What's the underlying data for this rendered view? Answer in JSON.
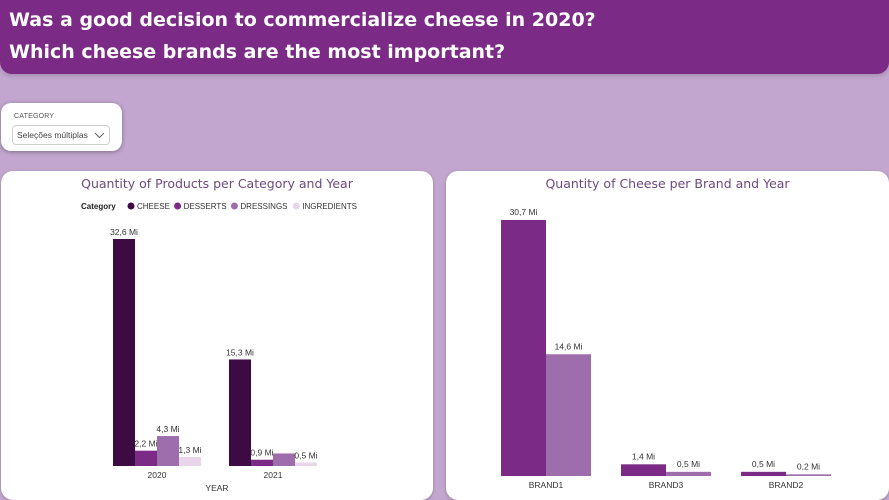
{
  "header": {
    "line1": "Was a good decision to commercialize cheese in 2020?",
    "line2": "Which cheese brands are the most important?"
  },
  "slicer": {
    "label": "CATEGORY",
    "value": "Seleções múltiplas",
    "icon": "chevron-down-icon"
  },
  "colors": {
    "header": "#7b2a85",
    "background": "#c2a6cf"
  },
  "chart1": {
    "title": "Quantity of Products per Category and Year",
    "chart_data": {
      "type": "bar",
      "title": "Quantity of Products per Category and Year",
      "xlabel": "YEAR",
      "ylabel": "",
      "legend_title": "Category",
      "legend_position": "top",
      "categories": [
        "2020",
        "2021"
      ],
      "ylim": [
        0,
        32.6
      ],
      "series": [
        {
          "name": "CHEESE",
          "color": "#3e0a44",
          "values": [
            32.6,
            15.3
          ],
          "labels": [
            "32,6 Mi",
            "15,3 Mi"
          ]
        },
        {
          "name": "DESSERTS",
          "color": "#7b2a85",
          "values": [
            2.2,
            0.9
          ],
          "labels": [
            "2,2 Mi",
            "0,9 Mi"
          ]
        },
        {
          "name": "DRESSINGS",
          "color": "#9e6dab",
          "values": [
            4.3,
            1.8
          ],
          "labels": [
            "4,3 Mi",
            ""
          ]
        },
        {
          "name": "INGREDIENTS",
          "color": "#e8d5ea",
          "values": [
            1.3,
            0.5
          ],
          "labels": [
            "1,3 Mi",
            "0,5 Mi"
          ]
        }
      ]
    }
  },
  "chart2": {
    "title": "Quantity of Cheese per Brand and Year",
    "chart_data": {
      "type": "bar",
      "title": "Quantity of Cheese per Brand and Year",
      "xlabel": "",
      "ylabel": "",
      "categories": [
        "BRAND1",
        "BRAND3",
        "BRAND2"
      ],
      "ylim": [
        0,
        30.7
      ],
      "series": [
        {
          "color": "#7b2a85",
          "values": [
            30.7,
            1.4,
            0.5
          ],
          "labels": [
            "30,7 Mi",
            "1,4 Mi",
            "0,5 Mi"
          ]
        },
        {
          "color": "#9e6dab",
          "values": [
            14.6,
            0.5,
            0.2
          ],
          "labels": [
            "14,6 Mi",
            "0,5 Mi",
            "0,2 Mi"
          ]
        }
      ]
    }
  }
}
